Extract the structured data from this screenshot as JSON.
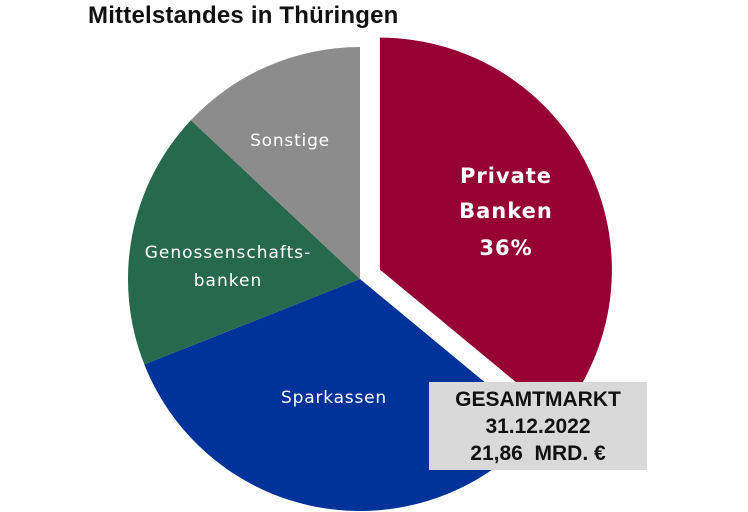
{
  "title": "Mittelstandes in Thüringen",
  "market_box": {
    "line1": "GESAMTMARKT",
    "line2": "31.12.2022",
    "line3": "21,86  MRD. €"
  },
  "colors": {
    "private": "#960033",
    "sparkassen": "#003399",
    "genossenschaft": "#26694d",
    "sonstige": "#8c8c8c",
    "box": "#d9d9d9"
  },
  "chart_data": {
    "type": "pie",
    "title": "Mittelstandes in Thüringen",
    "start_angle_deg": 0,
    "direction": "clockwise",
    "exploded_slice": "Private Banken",
    "slices": [
      {
        "name": "Private Banken",
        "label_lines": [
          "Private",
          "Banken",
          "36%"
        ],
        "value": 36,
        "color": "#960033"
      },
      {
        "name": "Sparkassen",
        "label_lines": [
          "Sparkassen"
        ],
        "value": 33,
        "color": "#003399"
      },
      {
        "name": "Genossenschaftsbanken",
        "label_lines": [
          "Genossenschafts-",
          "banken"
        ],
        "value": 18,
        "color": "#26694d"
      },
      {
        "name": "Sonstige",
        "label_lines": [
          "Sonstige"
        ],
        "value": 13,
        "color": "#8c8c8c"
      }
    ]
  }
}
